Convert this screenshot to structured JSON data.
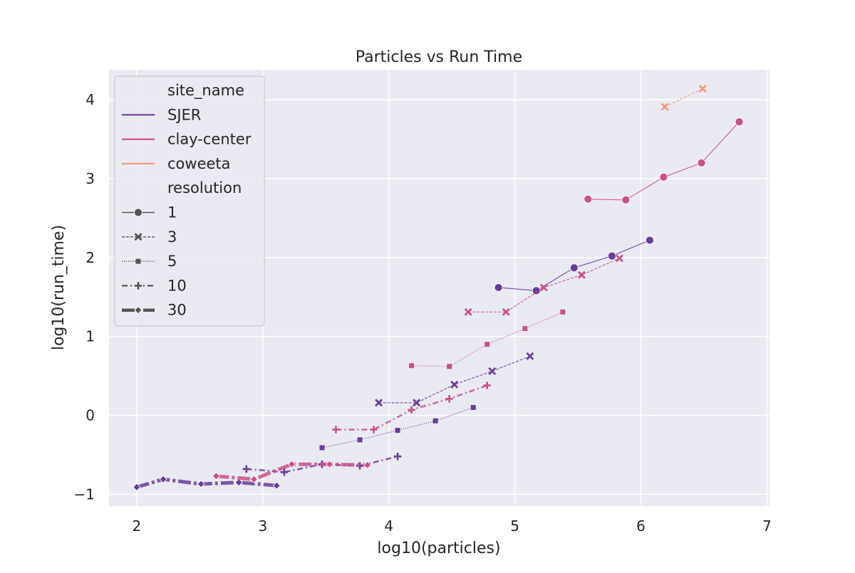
{
  "chart_data": {
    "type": "line",
    "title": "Particles vs Run Time",
    "xlabel": "log10(particles)",
    "ylabel": "log10(run_time)",
    "xlim": [
      1.78,
      7.02
    ],
    "ylim": [
      -1.15,
      4.38
    ],
    "xticks": [
      2,
      3,
      4,
      5,
      6,
      7
    ],
    "yticks": [
      -1,
      0,
      1,
      2,
      3,
      4
    ],
    "xtick_labels": [
      "2",
      "3",
      "4",
      "5",
      "6",
      "7"
    ],
    "ytick_labels": [
      "−1",
      "0",
      "1",
      "2",
      "3",
      "4"
    ],
    "grid": true,
    "legend_position": "upper-left",
    "hue": {
      "title": "site_name",
      "levels": [
        {
          "name": "SJER",
          "color": "#6a3d9a"
        },
        {
          "name": "clay-center",
          "color": "#c9508a"
        },
        {
          "name": "coweeta",
          "color": "#f39c7a"
        }
      ]
    },
    "style": {
      "title": "resolution",
      "levels": [
        {
          "name": "1",
          "dash": "solid",
          "marker": "circle",
          "width": 1.2
        },
        {
          "name": "3",
          "dash": "dashed",
          "marker": "x",
          "width": 1.2
        },
        {
          "name": "5",
          "dash": "dotted",
          "marker": "square",
          "width": 1.2
        },
        {
          "name": "10",
          "dash": "dashdot",
          "marker": "plus",
          "width": 2.5
        },
        {
          "name": "30",
          "dash": "loose-dashdot",
          "marker": "diamond",
          "width": 5
        }
      ]
    },
    "series": [
      {
        "site": "SJER",
        "resolution": "1",
        "x": [
          4.87,
          5.17,
          5.47,
          5.77,
          6.07
        ],
        "y": [
          1.62,
          1.58,
          1.87,
          2.02,
          2.22
        ]
      },
      {
        "site": "SJER",
        "resolution": "3",
        "x": [
          3.92,
          4.22,
          4.52,
          4.82,
          5.12
        ],
        "y": [
          0.16,
          0.16,
          0.39,
          0.56,
          0.75
        ]
      },
      {
        "site": "SJER",
        "resolution": "5",
        "x": [
          3.47,
          3.77,
          4.07,
          4.37,
          4.67
        ],
        "y": [
          -0.41,
          -0.31,
          -0.19,
          -0.07,
          0.1
        ]
      },
      {
        "site": "SJER",
        "resolution": "10",
        "x": [
          2.87,
          3.17,
          3.47,
          3.77,
          4.07
        ],
        "y": [
          -0.68,
          -0.72,
          -0.62,
          -0.64,
          -0.52
        ]
      },
      {
        "site": "SJER",
        "resolution": "30",
        "x": [
          2.0,
          2.21,
          2.51,
          2.81,
          3.11
        ],
        "y": [
          -0.91,
          -0.81,
          -0.87,
          -0.85,
          -0.89
        ]
      },
      {
        "site": "clay-center",
        "resolution": "1",
        "x": [
          5.58,
          5.88,
          6.18,
          6.48,
          6.78
        ],
        "y": [
          2.74,
          2.73,
          3.02,
          3.2,
          3.72
        ]
      },
      {
        "site": "clay-center",
        "resolution": "3",
        "x": [
          4.63,
          4.93,
          5.23,
          5.53,
          5.83
        ],
        "y": [
          1.31,
          1.31,
          1.62,
          1.78,
          1.99
        ]
      },
      {
        "site": "clay-center",
        "resolution": "5",
        "x": [
          4.18,
          4.48,
          4.78,
          5.08,
          5.38
        ],
        "y": [
          0.63,
          0.62,
          0.9,
          1.1,
          1.31
        ]
      },
      {
        "site": "clay-center",
        "resolution": "10",
        "x": [
          3.58,
          3.88,
          4.18,
          4.48,
          4.78
        ],
        "y": [
          -0.18,
          -0.18,
          0.07,
          0.21,
          0.38
        ]
      },
      {
        "site": "clay-center",
        "resolution": "30",
        "x": [
          2.63,
          2.93,
          3.23,
          3.53,
          3.83
        ],
        "y": [
          -0.77,
          -0.81,
          -0.62,
          -0.62,
          -0.63
        ]
      },
      {
        "site": "coweeta",
        "resolution": "3",
        "x": [
          6.19,
          6.49
        ],
        "y": [
          3.91,
          4.14
        ]
      }
    ]
  }
}
